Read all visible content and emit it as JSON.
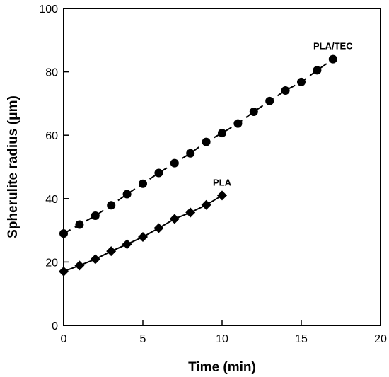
{
  "chart_data": {
    "type": "scatter",
    "xlabel": "Time (min)",
    "ylabel": "Spherulite radius (μm)",
    "xlim": [
      0,
      20
    ],
    "ylim": [
      0,
      100
    ],
    "xticks": [
      "0",
      "5",
      "10",
      "15",
      "20"
    ],
    "yticks": [
      "0",
      "20",
      "40",
      "60",
      "80",
      "100"
    ],
    "grid": false,
    "legend": "none",
    "series": [
      {
        "name": "PLA/TEC",
        "marker": "circle",
        "color": "#000000",
        "line": "dashed",
        "x": [
          0,
          1,
          2,
          3,
          4,
          5,
          6,
          7,
          8,
          9,
          10,
          11,
          12,
          13,
          14,
          15,
          16,
          17
        ],
        "y": [
          29,
          31.8,
          34.6,
          37.9,
          41.4,
          44.7,
          48.1,
          51.2,
          54.3,
          57.9,
          60.7,
          63.7,
          67.4,
          70.8,
          74.1,
          76.8,
          80.5,
          84.0
        ]
      },
      {
        "name": "PLA",
        "marker": "diamond",
        "color": "#000000",
        "line": "solid",
        "x": [
          0,
          1,
          2,
          3,
          4,
          5,
          6,
          7,
          8,
          9,
          10
        ],
        "y": [
          17,
          18.9,
          20.9,
          23.4,
          25.6,
          27.9,
          30.7,
          33.6,
          35.6,
          38.0,
          41.0
        ]
      }
    ]
  }
}
